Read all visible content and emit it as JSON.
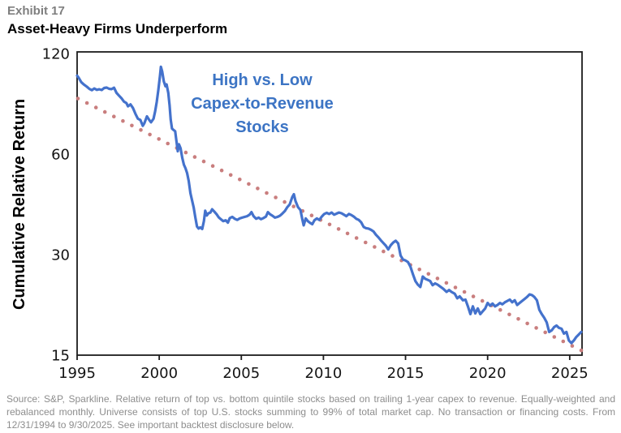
{
  "header": {
    "exhibit_label": "Exhibit 17",
    "title": "Asset-Heavy Firms Underperform"
  },
  "chart_data": {
    "type": "line",
    "title": "Asset-Heavy Firms Underperform",
    "xlabel": "",
    "ylabel": "Cumulative Relative Return",
    "y_scale": "log",
    "grid": false,
    "legend_position": "none",
    "x_range": [
      1995,
      2025.75
    ],
    "y_range": [
      15,
      120
    ],
    "x_ticks": [
      1995,
      2000,
      2005,
      2010,
      2015,
      2020,
      2025
    ],
    "y_ticks": [
      120,
      60,
      30,
      15
    ],
    "annotation": {
      "lines": [
        "High vs. Low",
        "Capex-to-Revenue",
        "Stocks"
      ],
      "color": "#3c74c4"
    },
    "colors": {
      "line": "#4472cc",
      "trend": "#c97e7e",
      "axis": "#1c1c1c"
    },
    "series": [
      {
        "name": "High vs. Low Capex-to-Revenue Stocks",
        "style": "solid",
        "color": "#4472cc",
        "points": [
          [
            1995.0,
            103
          ],
          [
            1995.1,
            101.5
          ],
          [
            1995.25,
            98.5
          ],
          [
            1995.4,
            97
          ],
          [
            1995.6,
            95.4
          ],
          [
            1995.75,
            94
          ],
          [
            1995.9,
            93.2
          ],
          [
            1996.05,
            94.3
          ],
          [
            1996.2,
            93.4
          ],
          [
            1996.35,
            93.8
          ],
          [
            1996.5,
            93.3
          ],
          [
            1996.65,
            94.6
          ],
          [
            1996.8,
            94.9
          ],
          [
            1996.95,
            94.1
          ],
          [
            1997.1,
            93.9
          ],
          [
            1997.25,
            94.8
          ],
          [
            1997.4,
            91.5
          ],
          [
            1997.55,
            89.8
          ],
          [
            1997.7,
            88.2
          ],
          [
            1997.85,
            86.2
          ],
          [
            1998.0,
            85.3
          ],
          [
            1998.1,
            83.4
          ],
          [
            1998.25,
            84.5
          ],
          [
            1998.4,
            82.4
          ],
          [
            1998.55,
            79.2
          ],
          [
            1998.7,
            76.6
          ],
          [
            1998.85,
            75.9
          ],
          [
            1999.0,
            72.9
          ],
          [
            1999.1,
            74.3
          ],
          [
            1999.25,
            77.8
          ],
          [
            1999.4,
            75.8
          ],
          [
            1999.5,
            74.7
          ],
          [
            1999.65,
            76.5
          ],
          [
            1999.75,
            80.5
          ],
          [
            1999.85,
            86
          ],
          [
            1999.95,
            93.5
          ],
          [
            2000.05,
            103
          ],
          [
            2000.1,
            109.5
          ],
          [
            2000.18,
            106
          ],
          [
            2000.28,
            99
          ],
          [
            2000.38,
            95.8
          ],
          [
            2000.45,
            97
          ],
          [
            2000.55,
            91.5
          ],
          [
            2000.63,
            84
          ],
          [
            2000.7,
            76
          ],
          [
            2000.78,
            71.5
          ],
          [
            2000.88,
            70.8
          ],
          [
            2000.97,
            70.2
          ],
          [
            2001.05,
            65.5
          ],
          [
            2001.13,
            61.2
          ],
          [
            2001.2,
            64.2
          ],
          [
            2001.3,
            62.5
          ],
          [
            2001.4,
            58.5
          ],
          [
            2001.5,
            55.8
          ],
          [
            2001.6,
            54.4
          ],
          [
            2001.7,
            52.6
          ],
          [
            2001.8,
            49.8
          ],
          [
            2001.9,
            45.8
          ],
          [
            2002.0,
            43.6
          ],
          [
            2002.1,
            41.5
          ],
          [
            2002.2,
            38.8
          ],
          [
            2002.3,
            36.4
          ],
          [
            2002.4,
            35.9
          ],
          [
            2002.5,
            36.2
          ],
          [
            2002.62,
            35.8
          ],
          [
            2002.72,
            37.8
          ],
          [
            2002.8,
            40.6
          ],
          [
            2002.9,
            39.3
          ],
          [
            2003.0,
            39.9
          ],
          [
            2003.12,
            40.1
          ],
          [
            2003.22,
            41.0
          ],
          [
            2003.35,
            40.4
          ],
          [
            2003.5,
            39.6
          ],
          [
            2003.62,
            38.8
          ],
          [
            2003.75,
            38.3
          ],
          [
            2003.9,
            37.8
          ],
          [
            2004.05,
            38.0
          ],
          [
            2004.18,
            37.4
          ],
          [
            2004.3,
            38.6
          ],
          [
            2004.45,
            38.9
          ],
          [
            2004.6,
            38.4
          ],
          [
            2004.75,
            38.1
          ],
          [
            2004.9,
            38.5
          ],
          [
            2005.05,
            38.7
          ],
          [
            2005.2,
            38.9
          ],
          [
            2005.35,
            39.1
          ],
          [
            2005.5,
            39.5
          ],
          [
            2005.62,
            40.2
          ],
          [
            2005.75,
            39.1
          ],
          [
            2005.9,
            38.4
          ],
          [
            2006.05,
            38.7
          ],
          [
            2006.2,
            38.3
          ],
          [
            2006.35,
            38.6
          ],
          [
            2006.5,
            39.0
          ],
          [
            2006.62,
            40.2
          ],
          [
            2006.75,
            39.6
          ],
          [
            2006.9,
            39.2
          ],
          [
            2007.05,
            38.7
          ],
          [
            2007.2,
            38.9
          ],
          [
            2007.35,
            39.2
          ],
          [
            2007.5,
            39.8
          ],
          [
            2007.65,
            40.5
          ],
          [
            2007.8,
            41.6
          ],
          [
            2007.95,
            42.4
          ],
          [
            2008.1,
            44.6
          ],
          [
            2008.2,
            45.5
          ],
          [
            2008.3,
            43.4
          ],
          [
            2008.45,
            41.6
          ],
          [
            2008.6,
            40.8
          ],
          [
            2008.72,
            38.2
          ],
          [
            2008.8,
            36.7
          ],
          [
            2008.92,
            38.5
          ],
          [
            2009.05,
            37.8
          ],
          [
            2009.2,
            37.3
          ],
          [
            2009.32,
            37.0
          ],
          [
            2009.45,
            38.0
          ],
          [
            2009.6,
            38.5
          ],
          [
            2009.75,
            38.1
          ],
          [
            2009.9,
            39.0
          ],
          [
            2010.05,
            39.7
          ],
          [
            2010.2,
            40.0
          ],
          [
            2010.35,
            39.7
          ],
          [
            2010.5,
            40.1
          ],
          [
            2010.65,
            39.5
          ],
          [
            2010.8,
            39.8
          ],
          [
            2010.95,
            40.1
          ],
          [
            2011.1,
            39.9
          ],
          [
            2011.25,
            39.5
          ],
          [
            2011.4,
            39.1
          ],
          [
            2011.55,
            39.7
          ],
          [
            2011.7,
            39.4
          ],
          [
            2011.85,
            39.0
          ],
          [
            2012.0,
            38.4
          ],
          [
            2012.15,
            38.1
          ],
          [
            2012.3,
            37.5
          ],
          [
            2012.45,
            36.3
          ],
          [
            2012.6,
            36.0
          ],
          [
            2012.75,
            35.9
          ],
          [
            2012.9,
            35.6
          ],
          [
            2013.05,
            35.2
          ],
          [
            2013.2,
            34.4
          ],
          [
            2013.35,
            33.8
          ],
          [
            2013.5,
            33.1
          ],
          [
            2013.65,
            32.5
          ],
          [
            2013.8,
            31.9
          ],
          [
            2013.95,
            31.1
          ],
          [
            2014.1,
            32.0
          ],
          [
            2014.25,
            32.6
          ],
          [
            2014.4,
            33.0
          ],
          [
            2014.55,
            32.4
          ],
          [
            2014.7,
            29.8
          ],
          [
            2014.85,
            29.0
          ],
          [
            2015.0,
            28.8
          ],
          [
            2015.15,
            28.5
          ],
          [
            2015.3,
            27.6
          ],
          [
            2015.45,
            26.2
          ],
          [
            2015.6,
            25.0
          ],
          [
            2015.75,
            24.4
          ],
          [
            2015.9,
            24.0
          ],
          [
            2016.05,
            25.8
          ],
          [
            2016.2,
            25.4
          ],
          [
            2016.35,
            25.2
          ],
          [
            2016.5,
            25.0
          ],
          [
            2016.65,
            24.3
          ],
          [
            2016.8,
            24.6
          ],
          [
            2016.95,
            24.4
          ],
          [
            2017.1,
            24.1
          ],
          [
            2017.3,
            23.7
          ],
          [
            2017.5,
            23.2
          ],
          [
            2017.65,
            23.5
          ],
          [
            2017.8,
            23.2
          ],
          [
            2018.0,
            22.9
          ],
          [
            2018.15,
            22.2
          ],
          [
            2018.3,
            22.5
          ],
          [
            2018.5,
            21.9
          ],
          [
            2018.65,
            22.0
          ],
          [
            2018.8,
            21.0
          ],
          [
            2018.95,
            19.9
          ],
          [
            2019.1,
            21.0
          ],
          [
            2019.25,
            20.0
          ],
          [
            2019.4,
            20.7
          ],
          [
            2019.55,
            19.9
          ],
          [
            2019.7,
            20.3
          ],
          [
            2019.85,
            20.7
          ],
          [
            2020.0,
            21.5
          ],
          [
            2020.15,
            21.1
          ],
          [
            2020.3,
            21.4
          ],
          [
            2020.45,
            21.0
          ],
          [
            2020.6,
            21.2
          ],
          [
            2020.75,
            21.5
          ],
          [
            2020.9,
            21.3
          ],
          [
            2021.05,
            21.6
          ],
          [
            2021.2,
            21.8
          ],
          [
            2021.35,
            22.0
          ],
          [
            2021.5,
            21.6
          ],
          [
            2021.65,
            21.9
          ],
          [
            2021.8,
            21.2
          ],
          [
            2021.95,
            21.5
          ],
          [
            2022.1,
            21.8
          ],
          [
            2022.25,
            22.1
          ],
          [
            2022.4,
            22.4
          ],
          [
            2022.55,
            22.8
          ],
          [
            2022.7,
            22.7
          ],
          [
            2022.85,
            22.4
          ],
          [
            2023.0,
            21.9
          ],
          [
            2023.15,
            20.5
          ],
          [
            2023.3,
            19.9
          ],
          [
            2023.45,
            19.4
          ],
          [
            2023.6,
            18.8
          ],
          [
            2023.75,
            17.6
          ],
          [
            2023.9,
            17.8
          ],
          [
            2024.05,
            18.2
          ],
          [
            2024.2,
            18.4
          ],
          [
            2024.35,
            18.1
          ],
          [
            2024.5,
            18.0
          ],
          [
            2024.65,
            17.4
          ],
          [
            2024.8,
            17.6
          ],
          [
            2024.95,
            16.6
          ],
          [
            2025.1,
            16.3
          ],
          [
            2025.25,
            16.6
          ],
          [
            2025.4,
            17.0
          ],
          [
            2025.55,
            17.3
          ],
          [
            2025.7,
            17.6
          ]
        ]
      },
      {
        "name": "Log-linear trend",
        "style": "dotted",
        "color": "#c97e7e",
        "points": [
          [
            1995.05,
            88
          ],
          [
            2025.7,
            15.5
          ]
        ]
      }
    ]
  },
  "footnote": "Source: S&P, Sparkline. Relative return of top vs. bottom quintile stocks based on trailing 1-year capex to revenue. Equally-weighted and rebalanced monthly. Universe consists of top U.S. stocks summing to 99% of total market cap. No transaction or financing costs. From 12/31/1994 to 9/30/2025. See important backtest disclosure below."
}
